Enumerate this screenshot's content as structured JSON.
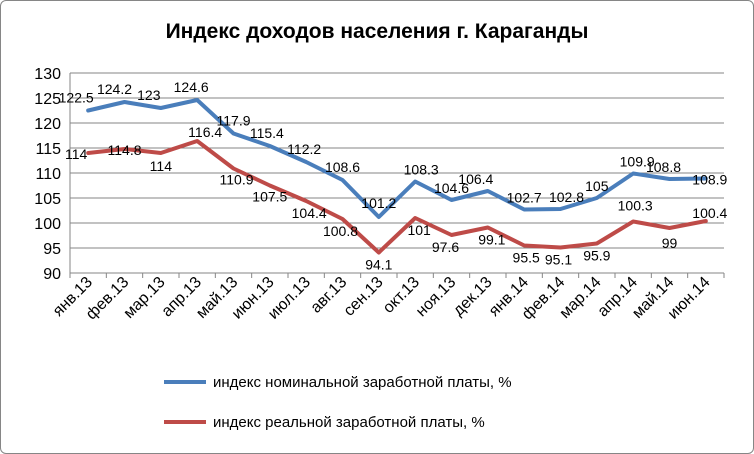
{
  "chart_data": {
    "type": "line",
    "title": "Индекс доходов населения г. Караганды",
    "categories": [
      "янв.13",
      "фев.13",
      "мар.13",
      "апр.13",
      "май.13",
      "июн.13",
      "июл.13",
      "авг.13",
      "сен.13",
      "окт.13",
      "ноя.13",
      "дек.13",
      "янв.14",
      "фев.14",
      "мар.14",
      "апр.14",
      "май.14",
      "июн.14"
    ],
    "series": [
      {
        "name": "индекс номинальной заработной платы, %",
        "color": "#4a7ebb",
        "values": [
          122.5,
          124.2,
          123,
          124.6,
          117.9,
          115.4,
          112.2,
          108.6,
          101.2,
          108.3,
          104.6,
          106.4,
          102.7,
          102.8,
          105,
          109.9,
          108.8,
          108.9
        ]
      },
      {
        "name": "индекс реальной заработной платы, %",
        "color": "#be4b48",
        "values": [
          114,
          114.8,
          114,
          116.4,
          110.9,
          107.5,
          104.4,
          100.8,
          94.1,
          101,
          97.6,
          99.1,
          95.5,
          95.1,
          95.9,
          100.3,
          99,
          100.4
        ]
      }
    ],
    "ylim": [
      90,
      130
    ],
    "yticks": [
      90,
      95,
      100,
      105,
      110,
      115,
      120,
      125,
      130
    ],
    "grid": true,
    "legend_position": "bottom"
  }
}
